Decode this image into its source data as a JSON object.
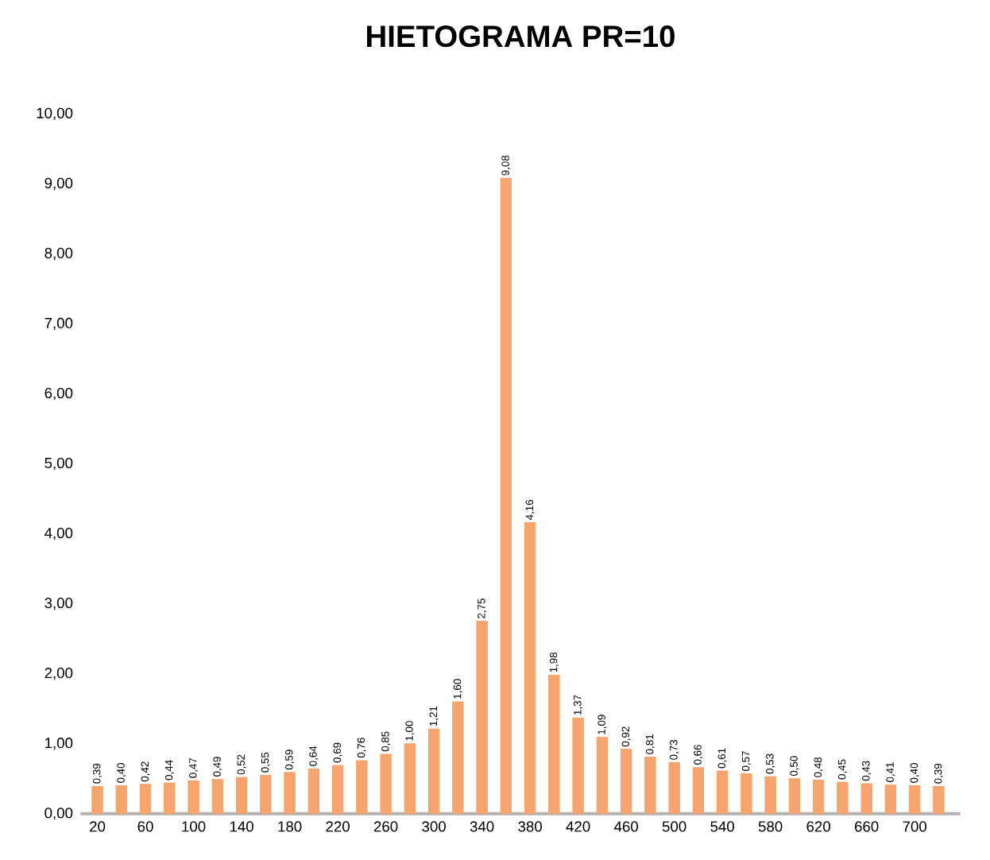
{
  "chart_data": {
    "type": "bar",
    "title": "HIETOGRAMA PR=10",
    "categories": [
      "20",
      null,
      "60",
      null,
      "100",
      null,
      "140",
      null,
      "180",
      null,
      "220",
      null,
      "260",
      null,
      "300",
      null,
      "340",
      null,
      "380",
      null,
      "420",
      null,
      "460",
      null,
      "500",
      null,
      "540",
      null,
      "580",
      null,
      "620",
      null,
      "660",
      null,
      "700",
      null
    ],
    "values": [
      0.39,
      0.4,
      0.42,
      0.44,
      0.47,
      0.49,
      0.52,
      0.55,
      0.59,
      0.64,
      0.69,
      0.76,
      0.85,
      1.0,
      1.21,
      1.6,
      2.75,
      9.08,
      4.16,
      1.98,
      1.37,
      1.09,
      0.92,
      0.81,
      0.73,
      0.66,
      0.61,
      0.57,
      0.53,
      0.5,
      0.48,
      0.45,
      0.43,
      0.41,
      0.4,
      0.39
    ],
    "value_labels": [
      "0,39",
      "0,40",
      "0,42",
      "0,44",
      "0,47",
      "0,49",
      "0,52",
      "0,55",
      "0,59",
      "0,64",
      "0,69",
      "0,76",
      "0,85",
      "1,00",
      "1,21",
      "1,60",
      "2,75",
      "9,08",
      "4,16",
      "1,98",
      "1,37",
      "1,09",
      "0,92",
      "0,81",
      "0,73",
      "0,66",
      "0,61",
      "0,57",
      "0,53",
      "0,50",
      "0,48",
      "0,45",
      "0,43",
      "0,41",
      "0,40",
      "0,39"
    ],
    "color": "#f4a46c",
    "ylim": [
      0,
      10
    ],
    "yticks": [
      {
        "value": 0,
        "label": "0,00"
      },
      {
        "value": 1,
        "label": "1,00"
      },
      {
        "value": 2,
        "label": "2,00"
      },
      {
        "value": 3,
        "label": "3,00"
      },
      {
        "value": 4,
        "label": "4,00"
      },
      {
        "value": 5,
        "label": "5,00"
      },
      {
        "value": 6,
        "label": "6,00"
      },
      {
        "value": 7,
        "label": "7,00"
      },
      {
        "value": 8,
        "label": "8,00"
      },
      {
        "value": 9,
        "label": "9,00"
      },
      {
        "value": 10,
        "label": "10,00"
      }
    ]
  }
}
